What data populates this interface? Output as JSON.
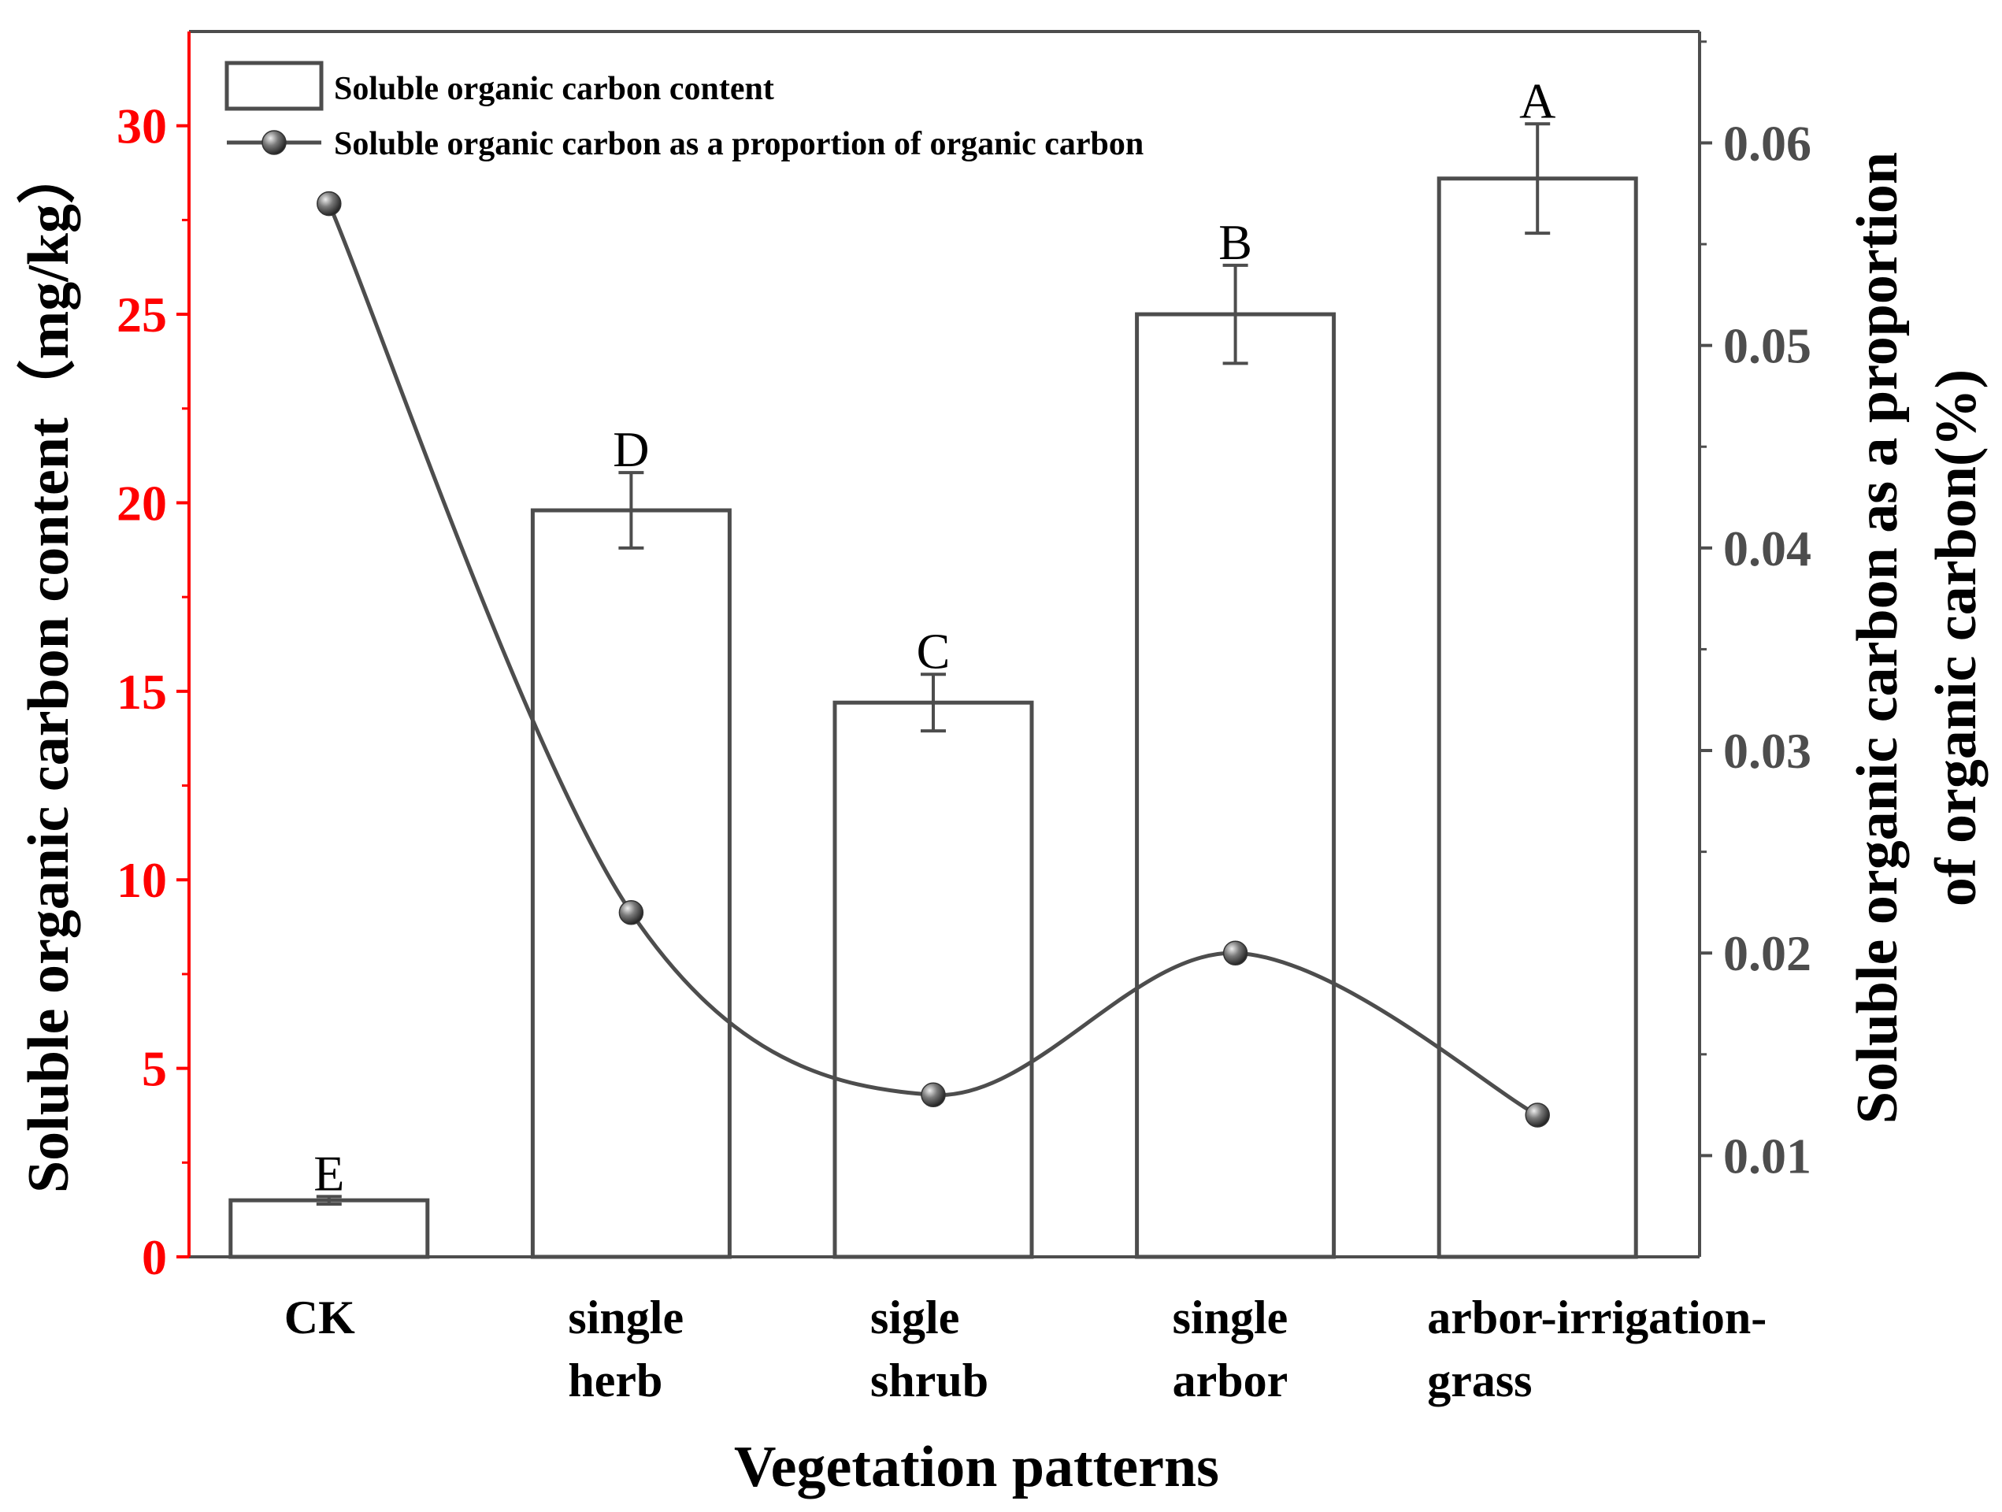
{
  "chart_data": {
    "type": "bar+line",
    "title": "",
    "xlabel": "Vegetation patterns",
    "ylabel_left": "Soluble organic carbon content（mg/kg）",
    "ylabel_right": "Soluble organic carbon as a proportion of organic carbon(%)",
    "ylabel_right_lines": [
      "Soluble organic carbon as a proportion",
      "of organic carbon(%)"
    ],
    "categories": [
      {
        "lines": [
          "CK"
        ]
      },
      {
        "lines": [
          "single",
          "herb"
        ]
      },
      {
        "lines": [
          "sigle",
          "shrub"
        ]
      },
      {
        "lines": [
          "single",
          "arbor"
        ]
      },
      {
        "lines": [
          "arbor-irrigation-",
          "grass"
        ]
      }
    ],
    "ylim_left": [
      0,
      32.5
    ],
    "yticks_left": [
      0,
      5,
      10,
      15,
      20,
      25,
      30
    ],
    "yticklabels_left": [
      "0",
      "5",
      "10",
      "15",
      "20",
      "25",
      "30"
    ],
    "ylim_right": [
      0.005,
      0.0655
    ],
    "yticks_right": [
      0.01,
      0.02,
      0.03,
      0.04,
      0.05,
      0.06
    ],
    "yticklabels_right": [
      "0.01",
      "0.02",
      "0.03",
      "0.04",
      "0.05",
      "0.06"
    ],
    "series": [
      {
        "name": "Soluble organic carbon content",
        "type": "bar",
        "axis": "left",
        "values": [
          1.5,
          19.8,
          14.7,
          25.0,
          28.6
        ],
        "errors": [
          0.1,
          1.0,
          0.75,
          1.3,
          1.45
        ],
        "significance_letters": [
          "E",
          "D",
          "C",
          "B",
          "A"
        ]
      },
      {
        "name": "Soluble organic carbon as a proportion of organic carbon",
        "type": "line",
        "axis": "right",
        "values": [
          0.057,
          0.022,
          0.013,
          0.02,
          0.012
        ]
      }
    ],
    "legend_position": "top-left",
    "colors": {
      "left_axis": "#ff0000",
      "bar_edge": "#4d4d4d",
      "line": "#4d4d4d",
      "frame": "#4d4d4d"
    }
  }
}
